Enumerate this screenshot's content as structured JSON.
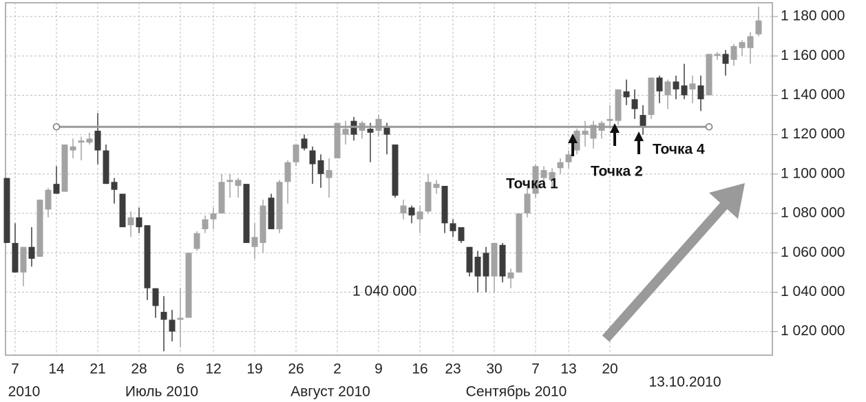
{
  "chart_data": {
    "type": "candlestick",
    "categories": [
      null,
      "7",
      null,
      null,
      null,
      null,
      "14",
      null,
      null,
      null,
      null,
      "21",
      null,
      null,
      null,
      null,
      "28",
      null,
      null,
      null,
      null,
      "6",
      null,
      null,
      null,
      "12",
      null,
      null,
      null,
      null,
      "19",
      null,
      null,
      null,
      null,
      "26",
      null,
      null,
      null,
      null,
      "2",
      null,
      null,
      null,
      null,
      "9",
      null,
      null,
      null,
      null,
      "16",
      null,
      null,
      null,
      "23",
      null,
      null,
      null,
      null,
      "30",
      null,
      null,
      null,
      null,
      "7",
      null,
      null,
      null,
      "13",
      null,
      null,
      null,
      null,
      "20",
      null,
      null,
      null,
      null,
      null,
      null,
      null,
      null,
      null,
      null,
      null,
      null,
      null,
      null,
      null,
      null,
      null,
      null
    ],
    "period_labels": [
      "2010",
      "Июль 2010",
      "Август 2010",
      "Сентябрь 2010",
      "13.10.2010"
    ],
    "open": [
      1098000,
      1065000,
      1050000,
      1063000,
      1058000,
      1082000,
      1095000,
      1091000,
      1112000,
      1116000,
      1116000,
      1122000,
      1112000,
      1096000,
      1090000,
      1074000,
      1078000,
      1074000,
      1042000,
      1030000,
      1026000,
      1026000,
      1027000,
      1062000,
      1072000,
      1077000,
      1080000,
      1096000,
      1094000,
      1095000,
      1063000,
      1065000,
      1088000,
      1072000,
      1096000,
      1106000,
      1118000,
      1112000,
      1107000,
      1098000,
      1108000,
      1120000,
      1127000,
      1122000,
      1123000,
      1122000,
      1124000,
      1115000,
      1080000,
      1083000,
      1077000,
      1081000,
      1093000,
      1094000,
      1075000,
      1073000,
      1063000,
      1058000,
      1060000,
      1048000,
      1064000,
      1047000,
      1050000,
      1080000,
      1090000,
      1098000,
      1097000,
      1103000,
      1106000,
      1112000,
      1120000,
      1118000,
      1122000,
      1127000,
      1127000,
      1142000,
      1138000,
      1130000,
      1130000,
      1149000,
      1140000,
      1147000,
      1145000,
      1143000,
      1145000,
      1140000,
      1160000,
      1161000,
      1158000,
      1164000,
      1164000,
      1171000
    ],
    "high": [
      1098000,
      1075000,
      1063000,
      1073000,
      1087000,
      1093000,
      1104000,
      1115000,
      1118000,
      1119000,
      1121000,
      1131000,
      1115000,
      1098000,
      1090000,
      1081000,
      1083000,
      1074000,
      1042000,
      1038000,
      1031000,
      1042000,
      1060000,
      1071000,
      1079000,
      1083000,
      1100000,
      1100000,
      1098000,
      1095000,
      1075000,
      1087000,
      1090000,
      1097000,
      1107000,
      1115000,
      1120000,
      1114000,
      1110000,
      1108000,
      1126000,
      1127000,
      1129000,
      1127000,
      1126000,
      1130000,
      1126000,
      1115000,
      1087000,
      1084000,
      1084000,
      1100000,
      1097000,
      1094000,
      1077000,
      1073000,
      1063000,
      1061000,
      1063000,
      1065000,
      1065000,
      1052000,
      1080000,
      1095000,
      1105000,
      1104000,
      1103000,
      1108000,
      1112000,
      1123000,
      1127000,
      1127000,
      1127000,
      1135000,
      1143000,
      1148000,
      1143000,
      1135000,
      1149000,
      1150000,
      1148000,
      1150000,
      1156000,
      1150000,
      1150000,
      1161000,
      1162000,
      1163000,
      1166000,
      1168000,
      1172000,
      1185000
    ],
    "low": [
      1065000,
      1050000,
      1043000,
      1053000,
      1058000,
      1078000,
      1090000,
      1091000,
      1108000,
      1107000,
      1115000,
      1105000,
      1095000,
      1085000,
      1073000,
      1068000,
      1070000,
      1036000,
      1027000,
      1010000,
      1015000,
      1012000,
      1027000,
      1061000,
      1070000,
      1072000,
      1080000,
      1088000,
      1088000,
      1065000,
      1057000,
      1060000,
      1072000,
      1070000,
      1085000,
      1104000,
      1112000,
      1095000,
      1093000,
      1088000,
      1108000,
      1115000,
      1117000,
      1118000,
      1106000,
      1119000,
      1110000,
      1088000,
      1077000,
      1075000,
      1070000,
      1080000,
      1090000,
      1070000,
      1068000,
      1065000,
      1048000,
      1040000,
      1040000,
      1040000,
      1045000,
      1042000,
      1050000,
      1078000,
      1088000,
      1093000,
      1093000,
      1100000,
      1103000,
      1110000,
      1114000,
      1113000,
      1118000,
      1123000,
      1125000,
      1135000,
      1128000,
      1120000,
      1128000,
      1136000,
      1133000,
      1138000,
      1138000,
      1136000,
      1132000,
      1140000,
      1158000,
      1150000,
      1155000,
      1160000,
      1156000,
      1170000
    ],
    "close": [
      1065000,
      1050000,
      1063000,
      1057000,
      1087000,
      1092000,
      1090000,
      1115000,
      1114000,
      1117000,
      1118000,
      1112000,
      1095000,
      1092000,
      1073000,
      1078000,
      1073000,
      1042000,
      1033000,
      1026000,
      1020000,
      1027000,
      1060000,
      1070000,
      1077000,
      1080000,
      1096000,
      1097000,
      1097000,
      1065000,
      1068000,
      1084000,
      1072000,
      1096000,
      1106000,
      1115000,
      1113000,
      1105000,
      1100000,
      1102000,
      1126000,
      1123000,
      1120000,
      1126000,
      1121000,
      1128000,
      1120000,
      1089000,
      1084000,
      1079000,
      1081000,
      1096000,
      1095000,
      1075000,
      1071000,
      1066000,
      1050000,
      1048000,
      1048000,
      1065000,
      1048000,
      1050000,
      1080000,
      1090000,
      1104000,
      1102000,
      1101000,
      1106000,
      1110000,
      1122000,
      1122000,
      1125000,
      1126000,
      1128000,
      1143000,
      1139000,
      1133000,
      1124000,
      1149000,
      1142000,
      1147000,
      1143000,
      1140000,
      1146000,
      1138000,
      1161000,
      1161000,
      1156000,
      1165000,
      1167000,
      1170000,
      1178000
    ],
    "up_color": "#a3a3a3",
    "down_color": "#3c3c3c",
    "ylim": [
      1008000,
      1187000
    ],
    "yticks": [
      {
        "value": 1020000,
        "label": "1 020 000"
      },
      {
        "value": 1040000,
        "label": "1 040 000"
      },
      {
        "value": 1060000,
        "label": "1 060 000"
      },
      {
        "value": 1080000,
        "label": "1 080 000"
      },
      {
        "value": 1100000,
        "label": "1 100 000"
      },
      {
        "value": 1120000,
        "label": "1 120 000"
      },
      {
        "value": 1140000,
        "label": "1 140 000"
      },
      {
        "value": 1160000,
        "label": "1 160 000"
      },
      {
        "value": 1180000,
        "label": "1 180 000"
      }
    ],
    "grid": true,
    "level_line": {
      "value": 1124000,
      "color": "#999999"
    },
    "annotations": [
      "Точка 1",
      "Точка 2",
      "Точка 4",
      "1 040 000"
    ]
  }
}
